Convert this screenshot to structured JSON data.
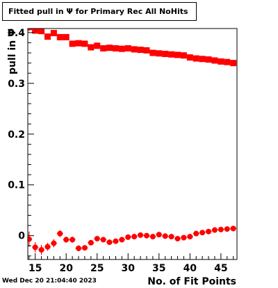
{
  "title": "Fitted pull in Ψ  for Primary Rec All NoHits",
  "footer_date": "Wed Dec 20 21:04:40 2023",
  "colors": {
    "marker": "#ff0000",
    "axis": "#000000"
  },
  "chart_data": {
    "type": "scatter",
    "title": "Fitted pull in Ψ  for Primary Rec All NoHits",
    "xlabel": "No. of Fit Points",
    "ylabel": "pull in  Ψ",
    "xlim": [
      13.8,
      47.6
    ],
    "ylim": [
      -0.047,
      0.408
    ],
    "x_ticks": [
      15,
      20,
      25,
      30,
      35,
      40,
      45
    ],
    "y_ticks": [
      0,
      0.1,
      0.2,
      0.3,
      0.4
    ],
    "y_tick_labels": [
      "0",
      "0.1",
      "0.2",
      "0.3",
      "0.4"
    ],
    "grid": false,
    "marker": "filled square",
    "series": [
      {
        "x": [
          14,
          15,
          16,
          17,
          18,
          19,
          20,
          21,
          22,
          23,
          24,
          25,
          26,
          27,
          28,
          29,
          30,
          31,
          32,
          33,
          34,
          35,
          36,
          37,
          38,
          39,
          40,
          41,
          42,
          43,
          44,
          45,
          46,
          47
        ],
        "y": [
          0.411,
          0.404,
          0.403,
          0.392,
          0.399,
          0.391,
          0.391,
          0.378,
          0.379,
          0.378,
          0.371,
          0.374,
          0.369,
          0.37,
          0.369,
          0.368,
          0.369,
          0.367,
          0.366,
          0.365,
          0.36,
          0.359,
          0.358,
          0.357,
          0.356,
          0.355,
          0.351,
          0.349,
          0.348,
          0.347,
          0.345,
          0.343,
          0.342,
          0.34
        ],
        "yerr": [
          0.008,
          0.006,
          0.006,
          0.006,
          0.005,
          0.004,
          0.004,
          0.003,
          0.003,
          0.003,
          0.003,
          0.002,
          0.002,
          0.002,
          0.002,
          0.002,
          0.002,
          0.002,
          0.002,
          0.002,
          0.002,
          0.002,
          0.002,
          0.002,
          0.002,
          0.002,
          0.002,
          0.002,
          0.002,
          0.002,
          0.002,
          0.002,
          0.002,
          0.002
        ]
      },
      {
        "x": [
          14,
          15,
          16,
          17,
          18,
          19,
          20,
          21,
          22,
          23,
          24,
          25,
          26,
          27,
          28,
          29,
          30,
          31,
          32,
          33,
          34,
          35,
          36,
          37,
          38,
          39,
          40,
          41,
          42,
          43,
          44,
          45,
          46,
          47
        ],
        "y": [
          -0.007,
          -0.023,
          -0.028,
          -0.022,
          -0.015,
          0.004,
          -0.008,
          -0.008,
          -0.025,
          -0.024,
          -0.014,
          -0.006,
          -0.008,
          -0.013,
          -0.011,
          -0.008,
          -0.003,
          -0.002,
          0.001,
          0.0,
          -0.002,
          0.002,
          -0.001,
          -0.002,
          -0.006,
          -0.004,
          -0.002,
          0.004,
          0.006,
          0.008,
          0.011,
          0.012,
          0.013,
          0.014
        ],
        "yerr": [
          0.015,
          0.01,
          0.01,
          0.008,
          0.008,
          0.007,
          0.006,
          0.006,
          0.006,
          0.005,
          0.005,
          0.005,
          0.004,
          0.004,
          0.004,
          0.004,
          0.004,
          0.003,
          0.003,
          0.003,
          0.003,
          0.003,
          0.003,
          0.003,
          0.003,
          0.003,
          0.003,
          0.003,
          0.003,
          0.003,
          0.003,
          0.003,
          0.003,
          0.003
        ]
      }
    ]
  }
}
